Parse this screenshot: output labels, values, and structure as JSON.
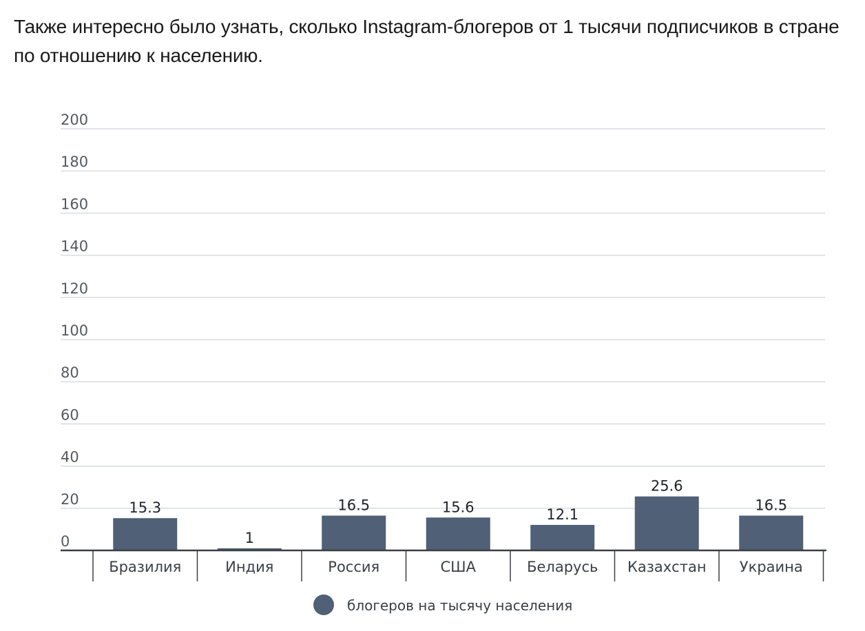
{
  "article": {
    "intro": "Также интересно было узнать, сколько Instagram-блогеров от 1 тысячи подписчиков в стране по отношению к населению."
  },
  "chart_data": {
    "type": "bar",
    "title": "",
    "xlabel": "",
    "ylabel": "",
    "categories": [
      "Бразилия",
      "Индия",
      "Россия",
      "США",
      "Беларусь",
      "Казахстан",
      "Украина"
    ],
    "series": [
      {
        "name": "блогеров на тысячу населения",
        "values": [
          15.3,
          1,
          16.5,
          15.6,
          12.1,
          25.6,
          16.5
        ],
        "labels": [
          "15.3",
          "1",
          "16.5",
          "15.6",
          "12.1",
          "25.6",
          "16.5"
        ],
        "color": "#4f6077"
      }
    ],
    "ylim": [
      0,
      200
    ],
    "yticks": [
      0,
      20,
      40,
      60,
      80,
      100,
      120,
      140,
      160,
      180,
      200
    ],
    "grid": true,
    "legend": "bottom-center",
    "colors": {
      "grid": "#d9dcdf",
      "axis": "#3a3f45"
    }
  }
}
